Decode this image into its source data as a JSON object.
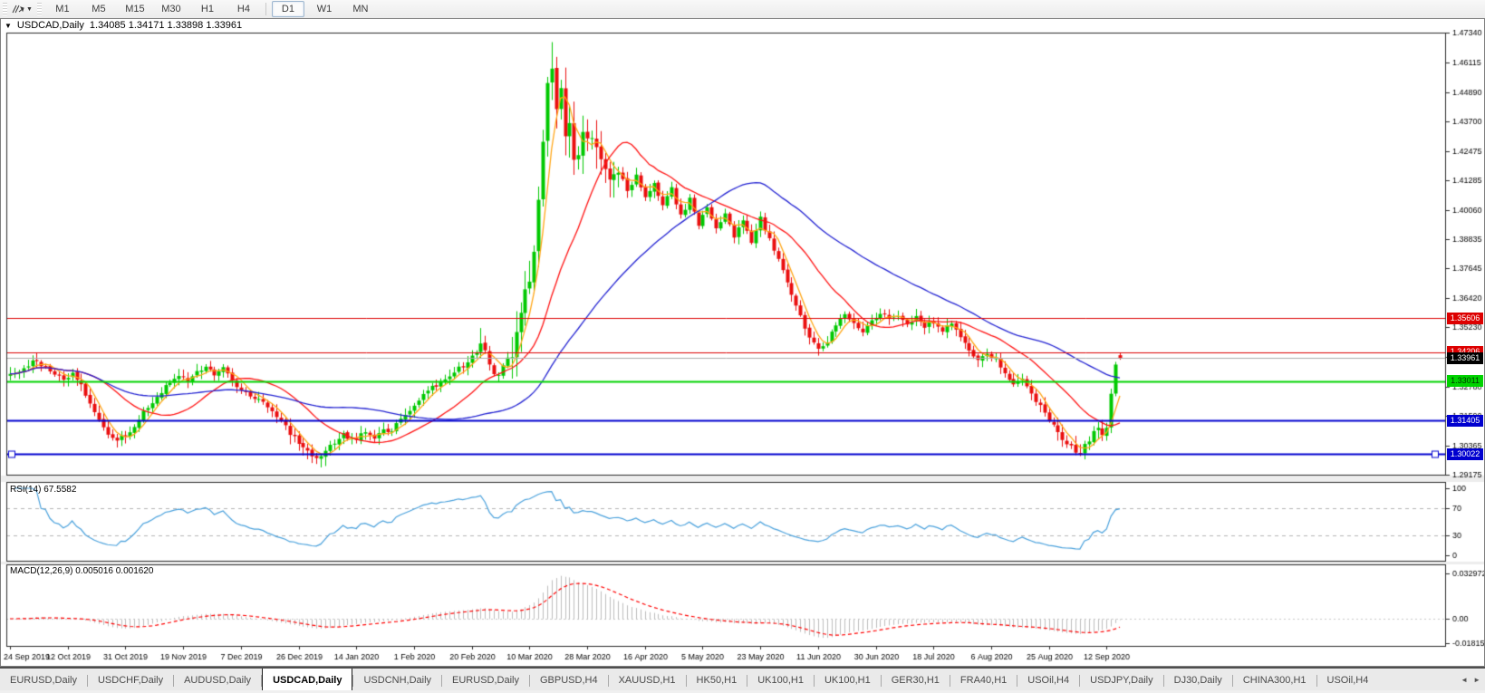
{
  "window": {
    "symbol_title": "USDCAD,Daily",
    "ohlc_string": "1.34085 1.34171 1.33898 1.33961",
    "caret_icon": "window-menu-caret"
  },
  "toolbar": {
    "cursor_tool_icon": "crosshair-tool",
    "timeframes": [
      {
        "label": "M1",
        "active": false
      },
      {
        "label": "M5",
        "active": false
      },
      {
        "label": "M15",
        "active": false
      },
      {
        "label": "M30",
        "active": false
      },
      {
        "label": "H1",
        "active": false
      },
      {
        "label": "H4",
        "active": false
      },
      {
        "label": "D1",
        "active": true
      },
      {
        "label": "W1",
        "active": false
      },
      {
        "label": "MN",
        "active": false
      }
    ]
  },
  "tabs": {
    "items": [
      {
        "label": "EURUSD,Daily",
        "active": false
      },
      {
        "label": "USDCHF,Daily",
        "active": false
      },
      {
        "label": "AUDUSD,Daily",
        "active": false
      },
      {
        "label": "USDCAD,Daily",
        "active": true
      },
      {
        "label": "USDCNH,Daily",
        "active": false
      },
      {
        "label": "EURUSD,Daily",
        "active": false
      },
      {
        "label": "GBPUSD,H4",
        "active": false
      },
      {
        "label": "XAUUSD,H1",
        "active": false
      },
      {
        "label": "HK50,H1",
        "active": false
      },
      {
        "label": "UK100,H1",
        "active": false
      },
      {
        "label": "UK100,H1",
        "active": false
      },
      {
        "label": "GER30,H1",
        "active": false
      },
      {
        "label": "FRA40,H1",
        "active": false
      },
      {
        "label": "USOil,H4",
        "active": false
      },
      {
        "label": "USDJPY,Daily",
        "active": false
      },
      {
        "label": "DJ30,Daily",
        "active": false
      },
      {
        "label": "CHINA300,H1",
        "active": false
      },
      {
        "label": "USOil,H4",
        "active": false
      }
    ],
    "scroll_left": "◄",
    "scroll_right": "►"
  },
  "chart_data": {
    "type": "candlestick",
    "symbol": "USDCAD",
    "timeframe": "Daily",
    "last_ohlc": {
      "open": 1.34085,
      "high": 1.34171,
      "low": 1.33898,
      "close": 1.33961
    },
    "price_range": {
      "top": 1.4734,
      "bottom": 1.29175
    },
    "y_ticks": [
      "1.47340",
      "1.46115",
      "1.44890",
      "1.43700",
      "1.42475",
      "1.41285",
      "1.40060",
      "1.38835",
      "1.37645",
      "1.36420",
      "1.35230",
      "1.34010",
      "1.32780",
      "1.31590",
      "1.30365",
      "1.29175"
    ],
    "x_labels": [
      "24 Sep 2019",
      "12 Oct 2019",
      "31 Oct 2019",
      "19 Nov 2019",
      "7 Dec 2019",
      "26 Dec 2019",
      "14 Jan 2020",
      "1 Feb 2020",
      "20 Feb 2020",
      "10 Mar 2020",
      "28 Mar 2020",
      "16 Apr 2020",
      "5 May 2020",
      "23 May 2020",
      "11 Jun 2020",
      "30 Jun 2020",
      "18 Jul 2020",
      "6 Aug 2020",
      "25 Aug 2020",
      "12 Sep 2020"
    ],
    "bars_per_label": 13,
    "bar_count": 251,
    "candle_colors": {
      "up": "#00c800",
      "down": "#ea0e0e"
    },
    "hlines": [
      {
        "label": "1.35606",
        "price": 1.35606,
        "color": "#dd0000",
        "width": 1,
        "label_bg": "#dd0000",
        "label_fg": "#ffffff",
        "selected": false
      },
      {
        "label": "1.34206",
        "price": 1.34206,
        "color": "#dd0000",
        "width": 1,
        "label_bg": "#dd0000",
        "label_fg": "#ffffff",
        "selected": false
      },
      {
        "label": "1.33961",
        "price": 1.33961,
        "color": "#ababab",
        "width": 1,
        "label_bg": "#000000",
        "label_fg": "#ffffff",
        "selected": false
      },
      {
        "label": "1.33011",
        "price": 1.33011,
        "color": "#00d300",
        "width": 2,
        "label_bg": "#00d300",
        "label_fg": "#003300",
        "selected": false
      },
      {
        "label": "1.31405",
        "price": 1.31405,
        "color": "#0000cf",
        "width": 2,
        "label_bg": "#0000cf",
        "label_fg": "#ffffff",
        "selected": false
      },
      {
        "label": "1.30022",
        "price": 1.30022,
        "color": "#0000cf",
        "width": 2,
        "label_bg": "#0000cf",
        "label_fg": "#ffffff",
        "selected": true
      }
    ],
    "moving_averages": [
      {
        "period": 5,
        "color": "#ffa514"
      },
      {
        "period": 20,
        "color": "#ff1414"
      },
      {
        "period": 50,
        "color": "#2424d2"
      }
    ],
    "price_anchors": [
      [
        0,
        1.333
      ],
      [
        3,
        1.336
      ],
      [
        6,
        1.3385
      ],
      [
        8,
        1.336
      ],
      [
        10,
        1.333
      ],
      [
        12,
        1.33
      ],
      [
        14,
        1.334
      ],
      [
        16,
        1.328
      ],
      [
        18,
        1.32
      ],
      [
        20,
        1.314
      ],
      [
        22,
        1.309
      ],
      [
        24,
        1.306
      ],
      [
        26,
        1.308
      ],
      [
        28,
        1.312
      ],
      [
        30,
        1.317
      ],
      [
        32,
        1.322
      ],
      [
        34,
        1.326
      ],
      [
        36,
        1.33
      ],
      [
        38,
        1.333
      ],
      [
        40,
        1.331
      ],
      [
        42,
        1.334
      ],
      [
        44,
        1.336
      ],
      [
        46,
        1.333
      ],
      [
        48,
        1.335
      ],
      [
        50,
        1.33
      ],
      [
        52,
        1.326
      ],
      [
        56,
        1.323
      ],
      [
        60,
        1.316
      ],
      [
        63,
        1.309
      ],
      [
        66,
        1.303
      ],
      [
        68,
        1.299
      ],
      [
        70,
        1.2995
      ],
      [
        72,
        1.304
      ],
      [
        75,
        1.308
      ],
      [
        78,
        1.306
      ],
      [
        80,
        1.31
      ],
      [
        82,
        1.307
      ],
      [
        84,
        1.311
      ],
      [
        86,
        1.309
      ],
      [
        88,
        1.315
      ],
      [
        91,
        1.32
      ],
      [
        94,
        1.326
      ],
      [
        97,
        1.33
      ],
      [
        100,
        1.334
      ],
      [
        103,
        1.338
      ],
      [
        105,
        1.342
      ],
      [
        106,
        1.346
      ],
      [
        107,
        1.343
      ],
      [
        108,
        1.338
      ],
      [
        109,
        1.333
      ],
      [
        110,
        1.332
      ],
      [
        111,
        1.336
      ],
      [
        112,
        1.34
      ],
      [
        113,
        1.339
      ],
      [
        114,
        1.349
      ],
      [
        115,
        1.358
      ],
      [
        116,
        1.366
      ],
      [
        117,
        1.372
      ],
      [
        118,
        1.385
      ],
      [
        119,
        1.405
      ],
      [
        120,
        1.43
      ],
      [
        121,
        1.452
      ],
      [
        122,
        1.46
      ],
      [
        123,
        1.443
      ],
      [
        124,
        1.449
      ],
      [
        125,
        1.43
      ],
      [
        126,
        1.438
      ],
      [
        127,
        1.42
      ],
      [
        128,
        1.425
      ],
      [
        129,
        1.431
      ],
      [
        131,
        1.431
      ],
      [
        133,
        1.42
      ],
      [
        135,
        1.412
      ],
      [
        137,
        1.418
      ],
      [
        139,
        1.408
      ],
      [
        141,
        1.415
      ],
      [
        143,
        1.405
      ],
      [
        145,
        1.412
      ],
      [
        147,
        1.402
      ],
      [
        149,
        1.409
      ],
      [
        151,
        1.398
      ],
      [
        153,
        1.405
      ],
      [
        155,
        1.395
      ],
      [
        157,
        1.401
      ],
      [
        159,
        1.393
      ],
      [
        161,
        1.399
      ],
      [
        163,
        1.39
      ],
      [
        165,
        1.396
      ],
      [
        167,
        1.387
      ],
      [
        169,
        1.397
      ],
      [
        171,
        1.389
      ],
      [
        174,
        1.376
      ],
      [
        176,
        1.366
      ],
      [
        178,
        1.357
      ],
      [
        180,
        1.348
      ],
      [
        182,
        1.343
      ],
      [
        184,
        1.347
      ],
      [
        186,
        1.354
      ],
      [
        188,
        1.358
      ],
      [
        190,
        1.3545
      ],
      [
        192,
        1.351
      ],
      [
        194,
        1.3555
      ],
      [
        196,
        1.3585
      ],
      [
        198,
        1.355
      ],
      [
        200,
        1.3575
      ],
      [
        202,
        1.354
      ],
      [
        204,
        1.356
      ],
      [
        206,
        1.353
      ],
      [
        208,
        1.3545
      ],
      [
        210,
        1.351
      ],
      [
        212,
        1.3545
      ],
      [
        214,
        1.348
      ],
      [
        216,
        1.343
      ],
      [
        218,
        1.339
      ],
      [
        220,
        1.342
      ],
      [
        222,
        1.339
      ],
      [
        224,
        1.334
      ],
      [
        226,
        1.329
      ],
      [
        228,
        1.332
      ],
      [
        230,
        1.325
      ],
      [
        232,
        1.32
      ],
      [
        234,
        1.314
      ],
      [
        236,
        1.309
      ],
      [
        238,
        1.305
      ],
      [
        240,
        1.301
      ],
      [
        241,
        1.3
      ],
      [
        242,
        1.304
      ],
      [
        243,
        1.306
      ],
      [
        244,
        1.309
      ],
      [
        245,
        1.311
      ],
      [
        246,
        1.308
      ],
      [
        247,
        1.311
      ],
      [
        248,
        1.325
      ],
      [
        249,
        1.337
      ],
      [
        250,
        1.33961
      ]
    ],
    "overrides": {
      "106": {
        "high": 1.352
      },
      "122": {
        "high": 1.4695
      },
      "241": {
        "low": 1.2994
      }
    },
    "rsi": {
      "label": "RSI(14) 67.5582",
      "period": 14,
      "value": 67.5582,
      "color": "#4aa1dc",
      "levels": [
        30,
        70
      ],
      "ticks": [
        "100",
        "70",
        "30",
        "0"
      ],
      "level_color": "#b4b4b4"
    },
    "macd": {
      "label": "MACD(12,26,9) 0.005016 0.001620",
      "fast": 12,
      "slow": 26,
      "signal": 9,
      "value": 0.005016,
      "signal_value": 0.00162,
      "ticks": [
        "0.032972",
        "0.00",
        "-0.018154"
      ],
      "axis_max": 0.032972,
      "axis_min": -0.018154,
      "hist_color": "#bdbdbd",
      "signal_color": "#ff0000",
      "zero_color": "#c8c8c8"
    }
  }
}
